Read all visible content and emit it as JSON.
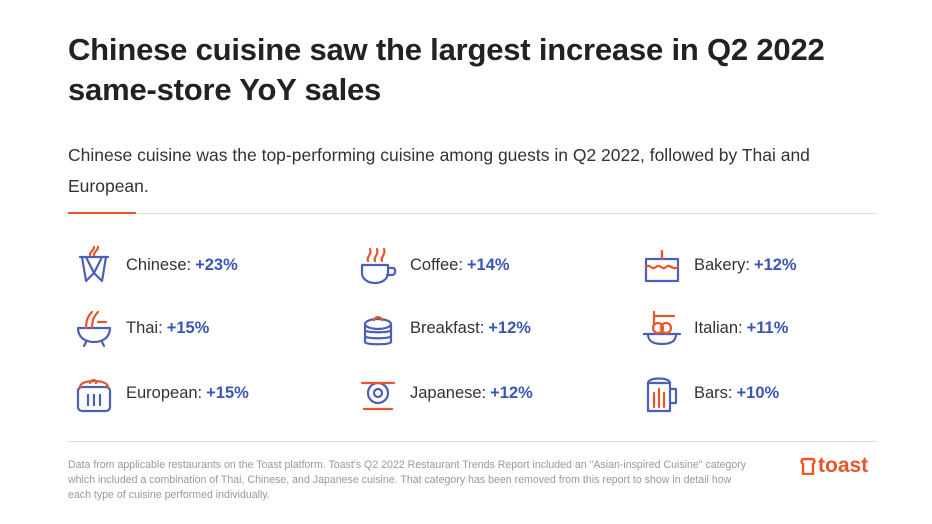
{
  "title": "Chinese cuisine saw the largest increase in Q2 2022 same-store YoY sales",
  "subtitle": "Chinese cuisine was the top-performing cuisine among guests in Q2 2022, followed by Thai and European.",
  "items": [
    {
      "label": "Chinese:",
      "value": "+23%",
      "icon": "takeout-box-icon"
    },
    {
      "label": "Coffee:",
      "value": "+14%",
      "icon": "coffee-cup-icon"
    },
    {
      "label": "Bakery:",
      "value": "+12%",
      "icon": "cake-icon"
    },
    {
      "label": "Thai:",
      "value": "+15%",
      "icon": "noodle-bowl-icon"
    },
    {
      "label": "Breakfast:",
      "value": "+12%",
      "icon": "pancakes-icon"
    },
    {
      "label": "Italian:",
      "value": "+11%",
      "icon": "pasta-icon"
    },
    {
      "label": "European:",
      "value": "+15%",
      "icon": "pot-icon"
    },
    {
      "label": "Japanese:",
      "value": "+12%",
      "icon": "sushi-icon"
    },
    {
      "label": "Bars:",
      "value": "+10%",
      "icon": "beer-mug-icon"
    }
  ],
  "footnote": "Data from applicable restaurants on the Toast platform. Toast's Q2 2022 Restaurant Trends Report included an \"Asian-inspired Cuisine\" category which included a combination of Thai, Chinese, and Japanese cuisine. That category has been removed from this report to show in detail how each type of cuisine performed individually.",
  "logo": "toast",
  "colors": {
    "accent": "#e8552b",
    "value": "#3c55b5",
    "icon_blue": "#4a5fb5"
  }
}
